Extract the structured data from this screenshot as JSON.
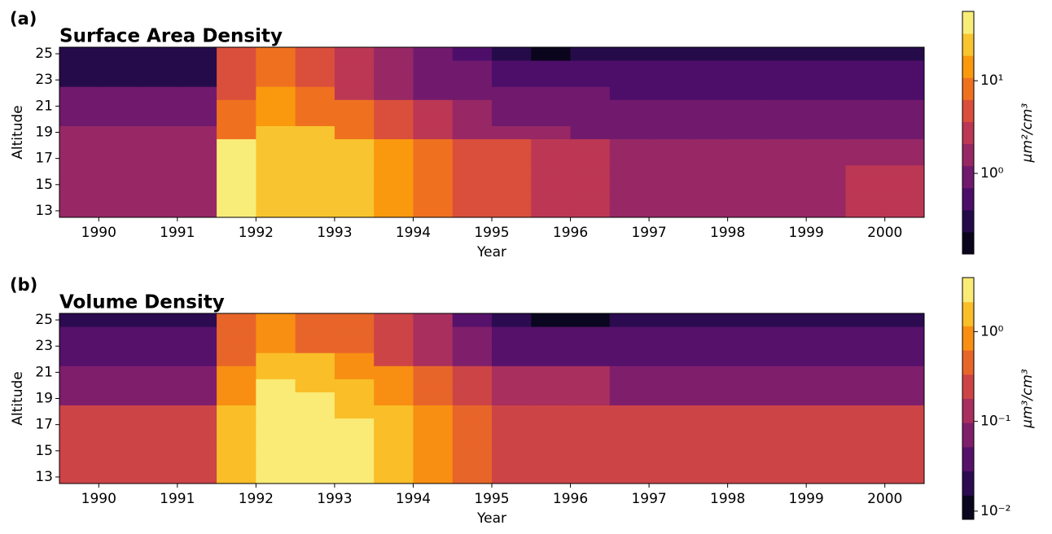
{
  "chart_data": [
    {
      "type": "heatmap",
      "panel_label": "(a)",
      "title": "Surface Area Density",
      "x_label": "Year",
      "y_label": "Altitude",
      "colorbar_label": "μm²/cm³",
      "colormap": "inferno",
      "levels": 11,
      "color_scale": "log",
      "x": [
        1989.75,
        1990.25,
        1990.75,
        1991.25,
        1991.75,
        1992.25,
        1992.75,
        1993.25,
        1993.75,
        1994.25,
        1994.75,
        1995.25,
        1995.75,
        1996.25,
        1996.75,
        1997.25,
        1997.75,
        1998.25,
        1998.75,
        1999.25,
        1999.75,
        2000.25
      ],
      "y": [
        13,
        14,
        15,
        16,
        17,
        18,
        19,
        20,
        21,
        22,
        23,
        24,
        25
      ],
      "z": [
        [
          2,
          2,
          2,
          2,
          40,
          30,
          25,
          25,
          15,
          8,
          4,
          4,
          3,
          3,
          2,
          2,
          2,
          2,
          2,
          2,
          2.5,
          2.5
        ],
        [
          2,
          2,
          2,
          2,
          40,
          30,
          25,
          25,
          15,
          8,
          4,
          4,
          3,
          3,
          2,
          2,
          2,
          2,
          2,
          2,
          2.5,
          2.5
        ],
        [
          2,
          2,
          2,
          2,
          40,
          30,
          25,
          25,
          15,
          8,
          4,
          4,
          3,
          3,
          2,
          2,
          2,
          2,
          2,
          2,
          2.5,
          2.5
        ],
        [
          2,
          2,
          2,
          2,
          40,
          30,
          25,
          25,
          15,
          8,
          4,
          4,
          3,
          3,
          2,
          2,
          2,
          2,
          2,
          2,
          2.5,
          2.5
        ],
        [
          2,
          2,
          2,
          2,
          40,
          30,
          25,
          25,
          15,
          8,
          4,
          4,
          3,
          3,
          2,
          2,
          2,
          2,
          2,
          2,
          2,
          2
        ],
        [
          2,
          2,
          2,
          2,
          40,
          30,
          25,
          25,
          15,
          8,
          4,
          4,
          3,
          3,
          2,
          2,
          2,
          2,
          2,
          2,
          2,
          2
        ],
        [
          2,
          2,
          2,
          2,
          10,
          30,
          25,
          8,
          5,
          3,
          2,
          2,
          2,
          1,
          1,
          1,
          1,
          1,
          1,
          1,
          1,
          1
        ],
        [
          0.9,
          0.9,
          0.9,
          0.9,
          10,
          15,
          10,
          8,
          5,
          3,
          2,
          1.2,
          1,
          1,
          1,
          1,
          1,
          1,
          1,
          1,
          1,
          1
        ],
        [
          0.9,
          0.9,
          0.9,
          0.9,
          10,
          15,
          10,
          8,
          5,
          3,
          2,
          1.2,
          1,
          1,
          1,
          1,
          1,
          1,
          1,
          1,
          1,
          1
        ],
        [
          0.9,
          0.9,
          0.9,
          0.9,
          5,
          15,
          10,
          3,
          2,
          1.2,
          0.8,
          1.2,
          1,
          1,
          0.5,
          0.5,
          0.5,
          0.5,
          0.5,
          0.5,
          0.5,
          0.5
        ],
        [
          0.4,
          0.4,
          0.4,
          0.4,
          5,
          8,
          5,
          3,
          2,
          1.2,
          0.8,
          0.5,
          0.45,
          0.5,
          0.5,
          0.5,
          0.5,
          0.5,
          0.5,
          0.5,
          0.5,
          0.5
        ],
        [
          0.4,
          0.4,
          0.4,
          0.4,
          5,
          8,
          5,
          3,
          2,
          1.2,
          0.8,
          0.5,
          0.45,
          0.5,
          0.5,
          0.5,
          0.5,
          0.5,
          0.5,
          0.5,
          0.5,
          0.5
        ],
        [
          0.25,
          0.25,
          0.25,
          0.25,
          5,
          8,
          5,
          3,
          2,
          1.2,
          0.5,
          0.25,
          0.2,
          0.3,
          0.3,
          0.3,
          0.3,
          0.3,
          0.3,
          0.3,
          0.3,
          0.3
        ]
      ],
      "xlim": [
        1989.5,
        2000.5
      ],
      "xticks": [
        1990,
        1991,
        1992,
        1993,
        1994,
        1995,
        1996,
        1997,
        1998,
        1999,
        2000
      ],
      "ylim": [
        12.5,
        25.5
      ],
      "yticks": [
        13,
        15,
        17,
        19,
        21,
        23,
        25
      ],
      "clim": [
        0.135,
        56
      ],
      "cticks": [
        {
          "value": 1,
          "label": "10⁰"
        },
        {
          "value": 10,
          "label": "10¹"
        }
      ]
    },
    {
      "type": "heatmap",
      "panel_label": "(b)",
      "title": "Volume Density",
      "x_label": "Year",
      "y_label": "Altitude",
      "colorbar_label": "μm³/cm³",
      "colormap": "inferno",
      "levels": 10,
      "color_scale": "log",
      "x": [
        1989.75,
        1990.25,
        1990.75,
        1991.25,
        1991.75,
        1992.25,
        1992.75,
        1993.25,
        1993.75,
        1994.25,
        1994.75,
        1995.25,
        1995.75,
        1996.25,
        1996.75,
        1997.25,
        1997.75,
        1998.25,
        1998.75,
        1999.25,
        1999.75,
        2000.25
      ],
      "y": [
        13,
        14,
        15,
        16,
        17,
        18,
        19,
        20,
        21,
        22,
        23,
        24,
        25
      ],
      "z": [
        [
          0.2,
          0.2,
          0.2,
          0.2,
          1.5,
          3.5,
          3.5,
          3.5,
          1.5,
          0.7,
          0.4,
          0.3,
          0.25,
          0.25,
          0.2,
          0.2,
          0.2,
          0.2,
          0.2,
          0.2,
          0.2,
          0.2
        ],
        [
          0.2,
          0.2,
          0.2,
          0.2,
          1.5,
          3.5,
          3.5,
          3.5,
          1.5,
          0.7,
          0.4,
          0.3,
          0.25,
          0.25,
          0.2,
          0.2,
          0.2,
          0.2,
          0.2,
          0.2,
          0.2,
          0.2
        ],
        [
          0.2,
          0.2,
          0.2,
          0.2,
          1.5,
          3.5,
          3.5,
          3.5,
          1.5,
          0.7,
          0.4,
          0.3,
          0.25,
          0.25,
          0.2,
          0.2,
          0.2,
          0.2,
          0.2,
          0.2,
          0.2,
          0.2
        ],
        [
          0.2,
          0.2,
          0.2,
          0.2,
          1.5,
          3.5,
          3.5,
          3.5,
          1.5,
          0.7,
          0.4,
          0.3,
          0.25,
          0.25,
          0.2,
          0.2,
          0.2,
          0.2,
          0.2,
          0.2,
          0.2,
          0.2
        ],
        [
          0.2,
          0.2,
          0.2,
          0.2,
          1.5,
          3.5,
          3.5,
          3.5,
          1.5,
          0.7,
          0.4,
          0.3,
          0.25,
          0.25,
          0.2,
          0.2,
          0.2,
          0.2,
          0.2,
          0.2,
          0.2,
          0.2
        ],
        [
          0.2,
          0.2,
          0.2,
          0.2,
          1.5,
          3.5,
          3.5,
          1.5,
          1.5,
          0.7,
          0.4,
          0.3,
          0.25,
          0.25,
          0.2,
          0.2,
          0.2,
          0.2,
          0.2,
          0.2,
          0.2,
          0.2
        ],
        [
          0.08,
          0.08,
          0.08,
          0.08,
          1,
          3.5,
          3.5,
          1.5,
          0.7,
          0.35,
          0.2,
          0.12,
          0.1,
          0.1,
          0.08,
          0.08,
          0.08,
          0.08,
          0.08,
          0.08,
          0.08,
          0.08
        ],
        [
          0.08,
          0.08,
          0.08,
          0.08,
          1,
          3.5,
          1.5,
          1.5,
          0.7,
          0.35,
          0.2,
          0.12,
          0.1,
          0.1,
          0.08,
          0.08,
          0.08,
          0.08,
          0.08,
          0.08,
          0.08,
          0.08
        ],
        [
          0.08,
          0.08,
          0.08,
          0.08,
          1,
          1.5,
          1.5,
          0.8,
          0.7,
          0.35,
          0.2,
          0.12,
          0.1,
          0.1,
          0.08,
          0.08,
          0.08,
          0.08,
          0.08,
          0.08,
          0.08,
          0.08
        ],
        [
          0.04,
          0.04,
          0.04,
          0.04,
          0.5,
          1.5,
          1.5,
          0.8,
          0.25,
          0.15,
          0.08,
          0.05,
          0.04,
          0.04,
          0.04,
          0.04,
          0.04,
          0.04,
          0.04,
          0.04,
          0.04,
          0.04
        ],
        [
          0.04,
          0.04,
          0.04,
          0.04,
          0.5,
          0.7,
          0.6,
          0.4,
          0.25,
          0.15,
          0.08,
          0.05,
          0.04,
          0.04,
          0.04,
          0.04,
          0.04,
          0.04,
          0.04,
          0.04,
          0.04,
          0.04
        ],
        [
          0.04,
          0.04,
          0.04,
          0.04,
          0.5,
          0.7,
          0.6,
          0.4,
          0.25,
          0.15,
          0.08,
          0.05,
          0.04,
          0.04,
          0.04,
          0.04,
          0.04,
          0.04,
          0.04,
          0.04,
          0.04,
          0.04
        ],
        [
          0.02,
          0.02,
          0.02,
          0.02,
          0.5,
          0.7,
          0.6,
          0.4,
          0.25,
          0.15,
          0.04,
          0.02,
          0.015,
          0.015,
          0.02,
          0.02,
          0.02,
          0.02,
          0.02,
          0.02,
          0.02,
          0.02
        ]
      ],
      "xlim": [
        1989.5,
        2000.5
      ],
      "xticks": [
        1990,
        1991,
        1992,
        1993,
        1994,
        1995,
        1996,
        1997,
        1998,
        1999,
        2000
      ],
      "ylim": [
        12.5,
        25.5
      ],
      "yticks": [
        13,
        15,
        17,
        19,
        21,
        23,
        25
      ],
      "clim": [
        0.0081,
        4
      ],
      "cticks": [
        {
          "value": 0.01,
          "label": "10⁻²"
        },
        {
          "value": 0.1,
          "label": "10⁻¹"
        },
        {
          "value": 1,
          "label": "10⁰"
        }
      ]
    }
  ]
}
